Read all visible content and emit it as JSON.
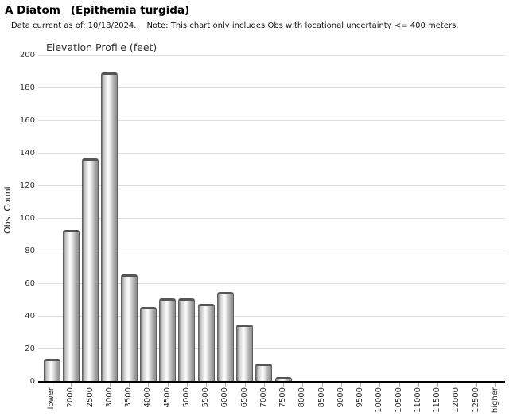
{
  "header": {
    "title_common": "A Diatom",
    "title_scientific": "(Epithemia turgida)",
    "subtitle_date": "Data current as of: 10/18/2024.",
    "subtitle_note": "Note: This chart only includes Obs with locational uncertainty <= 400 meters."
  },
  "chart_data": {
    "type": "bar",
    "title": "Elevation Profile (feet)",
    "xlabel": "",
    "ylabel": "Obs. Count",
    "ylim": [
      0,
      200
    ],
    "yticks": [
      0,
      20,
      40,
      60,
      80,
      100,
      120,
      140,
      160,
      180,
      200
    ],
    "grid": true,
    "legend_position": "none",
    "categories": [
      "lower",
      "2000",
      "2500",
      "3000",
      "3500",
      "4000",
      "4500",
      "5000",
      "5500",
      "6000",
      "6500",
      "7000",
      "7500",
      "8000",
      "8500",
      "9000",
      "9500",
      "10000",
      "10500",
      "11000",
      "11500",
      "12000",
      "12500",
      "higher"
    ],
    "values": [
      14,
      93,
      137,
      190,
      66,
      46,
      51,
      51,
      48,
      55,
      35,
      11,
      3,
      0,
      0,
      0,
      0,
      0,
      0,
      0,
      0,
      0,
      0,
      0
    ],
    "colors": {
      "bar_edge": "#5f5f5f",
      "bar_gradient_dark": "#767676",
      "bar_gradient_light": "#fbfbfb",
      "gridline": "#dedede",
      "axis_line": "#000000",
      "tick": "#b0b0b0",
      "label_text": "#333333",
      "title_text": "#000000"
    }
  }
}
